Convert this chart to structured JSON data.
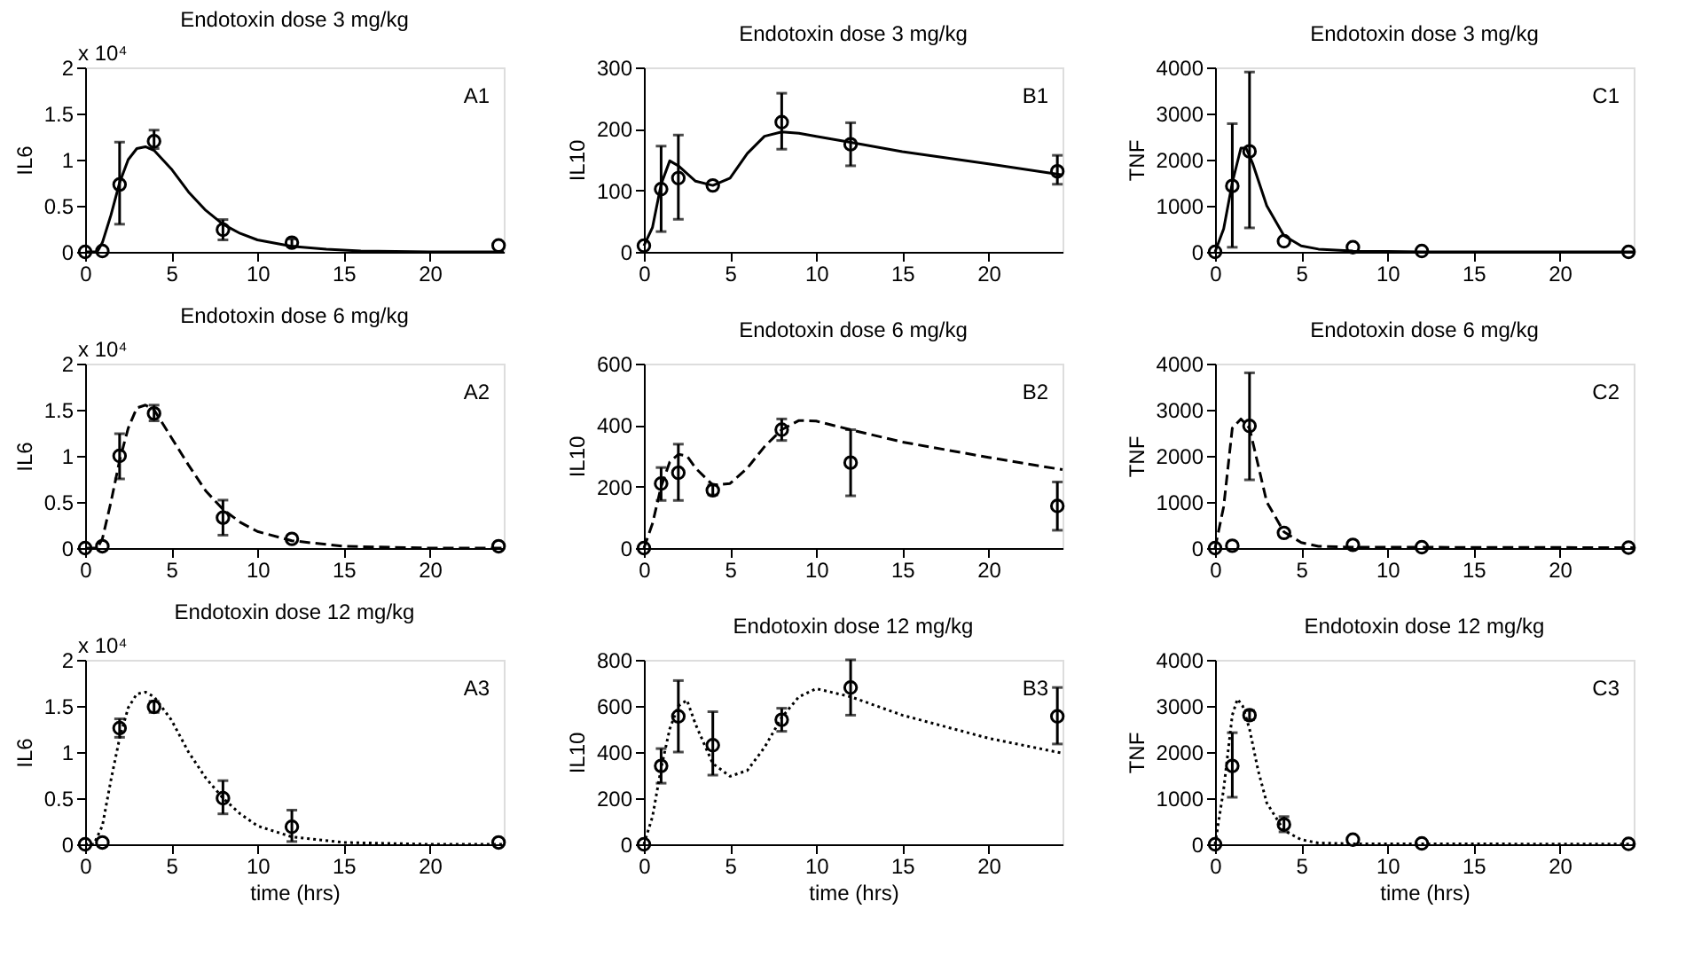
{
  "chart_data": [
    {
      "type": "scatter",
      "title": "Endotoxin dose 3 mg/kg",
      "ylabel": "IL6",
      "xlim": [
        0,
        24.3
      ],
      "xticks": [
        0,
        5,
        10,
        15,
        20
      ],
      "ylim": [
        0,
        2
      ],
      "yticks": [
        0,
        0.5,
        1,
        1.5,
        2
      ],
      "grid": false,
      "annotations": [
        "A1",
        "x 10⁴"
      ],
      "series": [
        {
          "color": "#000000",
          "marker": "circle",
          "x": [
            0,
            1,
            2,
            4,
            8,
            12,
            24
          ],
          "values": [
            0,
            0.01,
            0.73,
            1.2,
            0.24,
            0.1,
            0.07
          ],
          "errors": [
            null,
            null,
            [
              0.3,
              1.19
            ],
            [
              1.12,
              1.32
            ],
            [
              0.13,
              0.35
            ],
            [
              0.06,
              0.14
            ],
            null
          ]
        },
        {
          "type": "line",
          "color": "#000000",
          "marker": "none",
          "line_style": "solid",
          "x": [
            0,
            0.7,
            1,
            1.5,
            2,
            2.5,
            3,
            3.5,
            4,
            5,
            6,
            7,
            8,
            9,
            10,
            12,
            14,
            16,
            20,
            24.3
          ],
          "values": [
            0,
            0,
            0.1,
            0.4,
            0.75,
            1.0,
            1.12,
            1.14,
            1.1,
            0.9,
            0.65,
            0.45,
            0.3,
            0.2,
            0.13,
            0.06,
            0.03,
            0.01,
            0,
            0
          ]
        }
      ]
    },
    {
      "type": "scatter",
      "title": "Endotoxin dose 3 mg/kg",
      "ylabel": "IL10",
      "xlim": [
        0,
        24.3
      ],
      "xticks": [
        0,
        5,
        10,
        15,
        20
      ],
      "ylim": [
        0,
        300
      ],
      "yticks": [
        0,
        100,
        200,
        300
      ],
      "grid": false,
      "annotations": [
        "B1"
      ],
      "series": [
        {
          "color": "#000000",
          "marker": "circle",
          "x": [
            0,
            1,
            2,
            4,
            8,
            12,
            24
          ],
          "values": [
            10,
            102,
            120,
            108,
            211,
            175,
            131
          ],
          "errors": [
            null,
            [
              33,
              172
            ],
            [
              53,
              190
            ],
            null,
            [
              167,
              258
            ],
            [
              140,
              210
            ],
            [
              110,
              157
            ]
          ]
        },
        {
          "type": "line",
          "color": "#000000",
          "marker": "none",
          "line_style": "solid",
          "x": [
            0,
            0.5,
            1,
            1.5,
            2,
            3,
            4,
            5,
            6,
            7,
            8,
            9,
            10,
            12,
            15,
            20,
            24.3
          ],
          "values": [
            10,
            40,
            110,
            148,
            140,
            115,
            108,
            120,
            160,
            188,
            195,
            193,
            188,
            178,
            163,
            143,
            125
          ]
        }
      ]
    },
    {
      "type": "scatter",
      "title": "Endotoxin dose 3 mg/kg",
      "ylabel": "TNF",
      "xlim": [
        0,
        24.3
      ],
      "xticks": [
        0,
        5,
        10,
        15,
        20
      ],
      "ylim": [
        0,
        4000
      ],
      "yticks": [
        0,
        1000,
        2000,
        3000,
        4000
      ],
      "grid": false,
      "annotations": [
        "C1"
      ],
      "series": [
        {
          "color": "#000000",
          "marker": "circle",
          "x": [
            0,
            1,
            2,
            4,
            8,
            12,
            24
          ],
          "values": [
            0,
            1430,
            2180,
            230,
            100,
            20,
            0
          ],
          "errors": [
            null,
            [
              100,
              2780
            ],
            [
              520,
              3900
            ],
            null,
            null,
            null,
            null
          ]
        },
        {
          "type": "line",
          "color": "#000000",
          "marker": "none",
          "line_style": "solid",
          "x": [
            0,
            0.5,
            1,
            1.5,
            1.8,
            2.2,
            3,
            4,
            5,
            6,
            8,
            12,
            24.3
          ],
          "values": [
            0,
            500,
            1500,
            2250,
            2250,
            1900,
            1000,
            350,
            130,
            60,
            20,
            0,
            0
          ]
        }
      ]
    },
    {
      "type": "scatter",
      "title": "Endotoxin dose 6 mg/kg",
      "ylabel": "IL6",
      "xlim": [
        0,
        24.3
      ],
      "xticks": [
        0,
        5,
        10,
        15,
        20
      ],
      "ylim": [
        0,
        2
      ],
      "yticks": [
        0,
        0.5,
        1,
        1.5,
        2
      ],
      "grid": false,
      "annotations": [
        "A2",
        "x 10⁴"
      ],
      "series": [
        {
          "color": "#000000",
          "marker": "circle",
          "x": [
            0,
            1,
            2,
            4,
            8,
            12,
            24
          ],
          "values": [
            0,
            0.02,
            1.0,
            1.46,
            0.33,
            0.1,
            0.02
          ],
          "errors": [
            null,
            null,
            [
              0.75,
              1.24
            ],
            [
              1.38,
              1.55
            ],
            [
              0.14,
              0.52
            ],
            null,
            null
          ]
        },
        {
          "type": "line",
          "color": "#000000",
          "marker": "none",
          "line_style": "dashed",
          "x": [
            0,
            0.7,
            1,
            1.5,
            2,
            2.5,
            3,
            3.5,
            4,
            5,
            6,
            7,
            8,
            9,
            10,
            12,
            15,
            20,
            24.3
          ],
          "values": [
            0,
            0,
            0.1,
            0.5,
            0.95,
            1.3,
            1.52,
            1.55,
            1.5,
            1.2,
            0.9,
            0.62,
            0.42,
            0.28,
            0.18,
            0.08,
            0.02,
            0,
            0
          ]
        }
      ]
    },
    {
      "type": "scatter",
      "title": "Endotoxin dose 6 mg/kg",
      "ylabel": "IL10",
      "xlim": [
        0,
        24.3
      ],
      "xticks": [
        0,
        5,
        10,
        15,
        20
      ],
      "ylim": [
        0,
        600
      ],
      "yticks": [
        0,
        200,
        400,
        600
      ],
      "grid": false,
      "annotations": [
        "B2"
      ],
      "series": [
        {
          "color": "#000000",
          "marker": "circle",
          "x": [
            0,
            1,
            2,
            4,
            8,
            12,
            24
          ],
          "values": [
            0,
            210,
            245,
            188,
            385,
            278,
            137
          ],
          "errors": [
            null,
            [
              155,
              262
            ],
            [
              155,
              338
            ],
            [
              173,
              205
            ],
            [
              350,
              420
            ],
            [
              170,
              385
            ],
            [
              58,
              215
            ]
          ]
        },
        {
          "type": "line",
          "color": "#000000",
          "marker": "none",
          "line_style": "dashed",
          "x": [
            0,
            0.5,
            1,
            1.5,
            2,
            2.5,
            3,
            4,
            5,
            6,
            7,
            8,
            9,
            10,
            12,
            15,
            20,
            24.3
          ],
          "values": [
            0,
            80,
            200,
            280,
            305,
            300,
            260,
            205,
            210,
            260,
            330,
            385,
            415,
            413,
            385,
            345,
            295,
            255
          ]
        }
      ]
    },
    {
      "type": "scatter",
      "title": "Endotoxin dose 6 mg/kg",
      "ylabel": "TNF",
      "xlim": [
        0,
        24.3
      ],
      "xticks": [
        0,
        5,
        10,
        15,
        20
      ],
      "ylim": [
        0,
        4000
      ],
      "yticks": [
        0,
        1000,
        2000,
        3000,
        4000
      ],
      "grid": false,
      "annotations": [
        "C2"
      ],
      "series": [
        {
          "color": "#000000",
          "marker": "circle",
          "x": [
            0,
            1,
            2,
            4,
            8,
            12,
            24
          ],
          "values": [
            0,
            50,
            2650,
            330,
            70,
            20,
            10
          ],
          "errors": [
            null,
            null,
            [
              1480,
              3800
            ],
            null,
            null,
            null,
            null
          ]
        },
        {
          "type": "line",
          "color": "#000000",
          "marker": "none",
          "line_style": "dashed",
          "x": [
            0,
            0.5,
            1,
            1.5,
            2,
            2.5,
            3,
            4,
            5,
            6,
            8,
            24.3
          ],
          "values": [
            0,
            900,
            2600,
            2800,
            2600,
            1800,
            1000,
            350,
            120,
            40,
            20,
            10
          ]
        }
      ]
    },
    {
      "type": "scatter",
      "title": "Endotoxin dose 12 mg/kg",
      "xlabel": "time (hrs)",
      "ylabel": "IL6",
      "xlim": [
        0,
        24.3
      ],
      "xticks": [
        0,
        5,
        10,
        15,
        20
      ],
      "ylim": [
        0,
        2
      ],
      "yticks": [
        0,
        0.5,
        1,
        1.5,
        2
      ],
      "grid": false,
      "annotations": [
        "A3",
        "x 10⁴"
      ],
      "series": [
        {
          "color": "#000000",
          "marker": "circle",
          "x": [
            0,
            1,
            2,
            4,
            8,
            12,
            24
          ],
          "values": [
            0,
            0.02,
            1.26,
            1.49,
            0.5,
            0.19,
            0.02
          ],
          "errors": [
            null,
            null,
            [
              1.16,
              1.36
            ],
            [
              1.43,
              1.55
            ],
            [
              0.33,
              0.69
            ],
            [
              0.03,
              0.37
            ],
            null
          ]
        },
        {
          "type": "line",
          "color": "#000000",
          "marker": "none",
          "line_style": "dotted",
          "x": [
            0,
            0.5,
            1,
            1.5,
            2,
            2.5,
            3,
            3.5,
            4,
            5,
            6,
            7,
            8,
            9,
            10,
            12,
            15,
            20,
            24.3
          ],
          "values": [
            0,
            0,
            0.2,
            0.7,
            1.15,
            1.48,
            1.63,
            1.65,
            1.6,
            1.35,
            1.0,
            0.72,
            0.5,
            0.33,
            0.2,
            0.08,
            0.02,
            0,
            0
          ]
        }
      ]
    },
    {
      "type": "scatter",
      "title": "Endotoxin dose 12 mg/kg",
      "xlabel": "time (hrs)",
      "ylabel": "IL10",
      "xlim": [
        0,
        24.3
      ],
      "xticks": [
        0,
        5,
        10,
        15,
        20
      ],
      "ylim": [
        0,
        800
      ],
      "yticks": [
        0,
        200,
        400,
        600,
        800
      ],
      "grid": false,
      "annotations": [
        "B3"
      ],
      "series": [
        {
          "color": "#000000",
          "marker": "circle",
          "x": [
            0,
            1,
            2,
            4,
            8,
            12,
            24
          ],
          "values": [
            0,
            340,
            555,
            430,
            540,
            680,
            555
          ],
          "errors": [
            null,
            [
              265,
              415
            ],
            [
              400,
              710
            ],
            [
              300,
              575
            ],
            [
              490,
              590
            ],
            [
              560,
              800
            ],
            [
              435,
              680
            ]
          ]
        },
        {
          "type": "line",
          "color": "#000000",
          "marker": "none",
          "line_style": "dotted",
          "x": [
            0,
            0.5,
            1,
            1.5,
            2,
            2.5,
            3,
            4,
            5,
            6,
            7,
            8,
            9,
            10,
            12,
            15,
            20,
            24.3
          ],
          "values": [
            0,
            120,
            330,
            500,
            600,
            625,
            520,
            350,
            295,
            320,
            420,
            550,
            640,
            675,
            640,
            560,
            460,
            395
          ]
        }
      ]
    },
    {
      "type": "scatter",
      "title": "Endotoxin dose 12 mg/kg",
      "xlabel": "time (hrs)",
      "ylabel": "TNF",
      "xlim": [
        0,
        24.3
      ],
      "xticks": [
        0,
        5,
        10,
        15,
        20
      ],
      "ylim": [
        0,
        4000
      ],
      "yticks": [
        0,
        1000,
        2000,
        3000,
        4000
      ],
      "grid": false,
      "annotations": [
        "C3"
      ],
      "series": [
        {
          "color": "#000000",
          "marker": "circle",
          "x": [
            0,
            1,
            2,
            4,
            8,
            12,
            24
          ],
          "values": [
            0,
            1700,
            2800,
            430,
            100,
            20,
            10
          ],
          "errors": [
            null,
            [
              1020,
              2420
            ],
            [
              2700,
              2900
            ],
            [
              270,
              600
            ],
            null,
            null,
            null
          ]
        },
        {
          "type": "line",
          "color": "#000000",
          "marker": "none",
          "line_style": "dotted",
          "x": [
            0,
            0.5,
            1,
            1.3,
            1.6,
            2,
            2.5,
            3,
            4,
            5,
            6,
            8,
            24.3
          ],
          "values": [
            0,
            1200,
            2800,
            3150,
            3000,
            2500,
            1600,
            900,
            300,
            100,
            30,
            10,
            5
          ]
        }
      ]
    }
  ]
}
